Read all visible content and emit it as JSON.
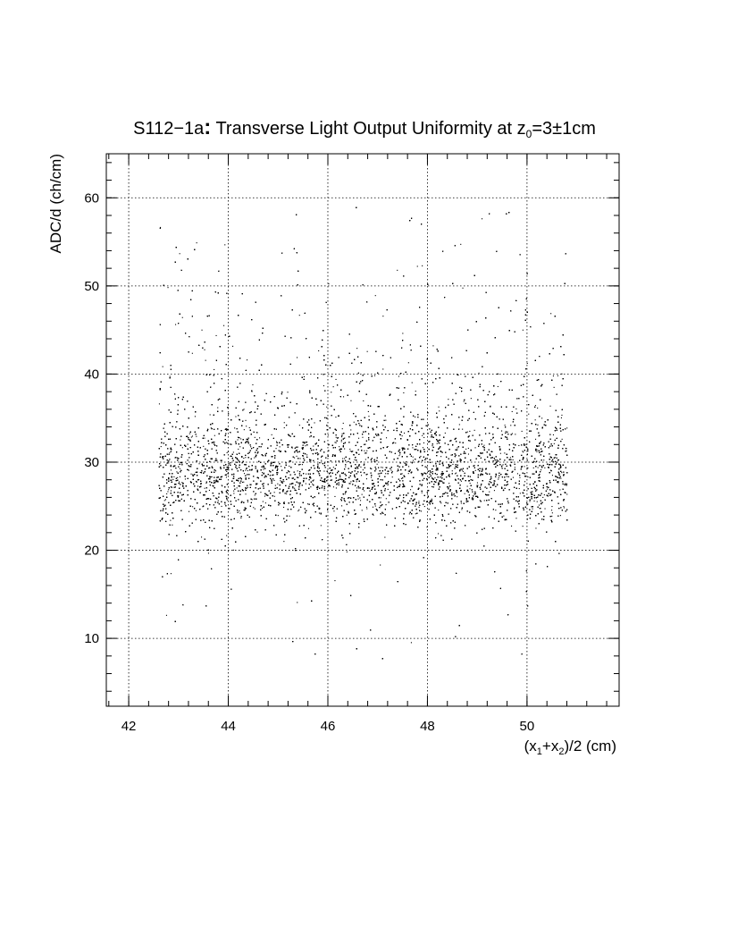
{
  "chart_data": {
    "type": "scatter",
    "title": {
      "pre": "S112−1a",
      "colon": ":",
      "main": " Transverse Light Output Uniformity at z",
      "sub": "0",
      "post": "=3±1cm"
    },
    "xlabel": {
      "p1": "(x",
      "s1": "1",
      "p2": "+x",
      "s2": "2",
      "p3": ")/2 (cm)"
    },
    "ylabel": "ADC/d (ch/cm)",
    "xlim": [
      41.55,
      51.85
    ],
    "ylim": [
      2.3,
      65
    ],
    "x_ticks": [
      "42",
      "44",
      "46",
      "48",
      "50"
    ],
    "y_ticks": [
      "10",
      "20",
      "30",
      "40",
      "50",
      "60"
    ],
    "grid": true,
    "marker_color": "#000000",
    "distribution": {
      "x_range": [
        42.6,
        50.8
      ],
      "core_center_y": 28.5,
      "core_spread_y": 2.8,
      "y_range": [
        7,
        59
      ],
      "dense_band_y": [
        24,
        34
      ]
    }
  }
}
